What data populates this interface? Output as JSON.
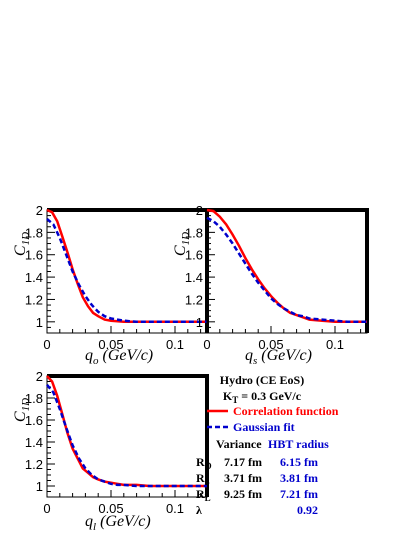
{
  "chart_data": [
    {
      "type": "line",
      "id": "qo",
      "xlabel": "q",
      "xlabel_sub": "o",
      "xlabel_unit": " (GeV/c)",
      "ylabel": "C",
      "ylabel_sub": "1D",
      "xlim": [
        0,
        0.125
      ],
      "ylim": [
        0.9,
        2.0
      ],
      "xticks": [
        "0",
        "0.05",
        "0.1"
      ],
      "yticks": [
        "1",
        "1.2",
        "1.4",
        "1.6",
        "1.8",
        "2"
      ],
      "series": [
        {
          "name": "Correlation function",
          "color": "#ff0000",
          "dash": "solid",
          "x": [
            0,
            0.004,
            0.008,
            0.012,
            0.016,
            0.02,
            0.024,
            0.028,
            0.032,
            0.036,
            0.04,
            0.045,
            0.05,
            0.055,
            0.06,
            0.07,
            0.08,
            0.09,
            0.1,
            0.11,
            0.12,
            0.125
          ],
          "y": [
            2.0,
            1.98,
            1.9,
            1.76,
            1.62,
            1.47,
            1.34,
            1.22,
            1.14,
            1.08,
            1.05,
            1.02,
            1.01,
            1.005,
            1.0,
            1.0,
            1.0,
            1.0,
            1.0,
            1.0,
            1.0,
            1.0
          ]
        },
        {
          "name": "Gaussian fit",
          "color": "#0000cc",
          "dash": "dashed",
          "x": [
            0,
            0.005,
            0.01,
            0.015,
            0.02,
            0.025,
            0.03,
            0.035,
            0.04,
            0.045,
            0.05,
            0.055,
            0.06,
            0.07,
            0.08,
            0.09,
            0.1,
            0.11,
            0.12,
            0.125
          ],
          "y": [
            1.92,
            1.87,
            1.75,
            1.6,
            1.45,
            1.33,
            1.23,
            1.15,
            1.09,
            1.05,
            1.03,
            1.02,
            1.01,
            1.0,
            1.0,
            1.0,
            1.0,
            1.0,
            1.0,
            1.0
          ]
        }
      ]
    },
    {
      "type": "line",
      "id": "qs",
      "xlabel": "q",
      "xlabel_sub": "s",
      "xlabel_unit": " (GeV/c)",
      "ylabel": "C",
      "ylabel_sub": "1D",
      "xlim": [
        0,
        0.125
      ],
      "ylim": [
        0.9,
        2.0
      ],
      "xticks": [
        "0",
        "0.05",
        "0.1"
      ],
      "yticks": [
        "1",
        "1.2",
        "1.4",
        "1.6",
        "1.8",
        "2"
      ],
      "series": [
        {
          "name": "Correlation function",
          "color": "#ff0000",
          "dash": "solid",
          "x": [
            0,
            0.005,
            0.01,
            0.015,
            0.02,
            0.025,
            0.03,
            0.035,
            0.04,
            0.045,
            0.05,
            0.055,
            0.06,
            0.065,
            0.07,
            0.075,
            0.08,
            0.09,
            0.1,
            0.11,
            0.12,
            0.125
          ],
          "y": [
            2.0,
            1.99,
            1.94,
            1.87,
            1.78,
            1.68,
            1.57,
            1.47,
            1.38,
            1.3,
            1.23,
            1.17,
            1.12,
            1.08,
            1.06,
            1.04,
            1.02,
            1.01,
            1.0,
            1.0,
            1.0,
            1.0
          ]
        },
        {
          "name": "Gaussian fit",
          "color": "#0000cc",
          "dash": "dashed",
          "x": [
            0,
            0.005,
            0.01,
            0.015,
            0.02,
            0.025,
            0.03,
            0.035,
            0.04,
            0.045,
            0.05,
            0.055,
            0.06,
            0.065,
            0.07,
            0.075,
            0.08,
            0.09,
            0.1,
            0.11,
            0.12,
            0.125
          ],
          "y": [
            1.93,
            1.9,
            1.85,
            1.78,
            1.7,
            1.61,
            1.52,
            1.43,
            1.35,
            1.28,
            1.21,
            1.16,
            1.12,
            1.09,
            1.06,
            1.05,
            1.03,
            1.02,
            1.01,
            1.0,
            1.0,
            1.0
          ]
        }
      ]
    },
    {
      "type": "line",
      "id": "ql",
      "xlabel": "q",
      "xlabel_sub": "l",
      "xlabel_unit": " (GeV/c)",
      "ylabel": "C",
      "ylabel_sub": "1D",
      "xlim": [
        0,
        0.125
      ],
      "ylim": [
        0.9,
        2.0
      ],
      "xticks": [
        "0",
        "0.05",
        "0.1"
      ],
      "yticks": [
        "1",
        "1.2",
        "1.4",
        "1.6",
        "1.8",
        "2"
      ],
      "series": [
        {
          "name": "Correlation function",
          "color": "#ff0000",
          "dash": "solid",
          "x": [
            0,
            0.004,
            0.008,
            0.012,
            0.016,
            0.02,
            0.024,
            0.028,
            0.032,
            0.036,
            0.04,
            0.045,
            0.05,
            0.055,
            0.06,
            0.07,
            0.08,
            0.09,
            0.1,
            0.11,
            0.12,
            0.125
          ],
          "y": [
            2.0,
            1.95,
            1.82,
            1.65,
            1.48,
            1.34,
            1.25,
            1.16,
            1.12,
            1.08,
            1.06,
            1.04,
            1.03,
            1.02,
            1.01,
            1.01,
            1.0,
            1.0,
            1.0,
            1.0,
            1.0,
            1.0
          ]
        },
        {
          "name": "Gaussian fit",
          "color": "#0000cc",
          "dash": "dashed",
          "x": [
            0,
            0.005,
            0.01,
            0.015,
            0.02,
            0.025,
            0.03,
            0.035,
            0.04,
            0.045,
            0.05,
            0.055,
            0.06,
            0.07,
            0.08,
            0.09,
            0.1,
            0.11,
            0.12,
            0.125
          ],
          "y": [
            1.92,
            1.85,
            1.7,
            1.53,
            1.37,
            1.25,
            1.16,
            1.1,
            1.06,
            1.04,
            1.02,
            1.01,
            1.01,
            1.0,
            1.0,
            1.0,
            1.0,
            1.0,
            1.0,
            1.0
          ]
        }
      ]
    }
  ],
  "info": {
    "title_line1": "Hydro (CE EoS)",
    "title_line2": "K",
    "title_line2_sub": "T",
    "title_line2_rest": " = 0.3 GeV/c",
    "legend": [
      {
        "label": "Correlation function",
        "color": "#ff0000",
        "dash": "solid"
      },
      {
        "label": "Gaussian fit",
        "color": "#0000cc",
        "dash": "dashed"
      }
    ],
    "table_headers": {
      "variance": "Variance",
      "hbt": "HBT radius"
    },
    "rows": [
      {
        "label": "R",
        "sub": "O",
        "variance": "7.17 fm",
        "hbt": "6.15 fm"
      },
      {
        "label": "R",
        "sub": "S",
        "variance": "3.71 fm",
        "hbt": "3.81 fm"
      },
      {
        "label": "R",
        "sub": "L",
        "variance": "9.25 fm",
        "hbt": "7.21 fm"
      },
      {
        "label": "λ",
        "sub": "",
        "variance": "",
        "hbt": "0.92"
      }
    ]
  }
}
